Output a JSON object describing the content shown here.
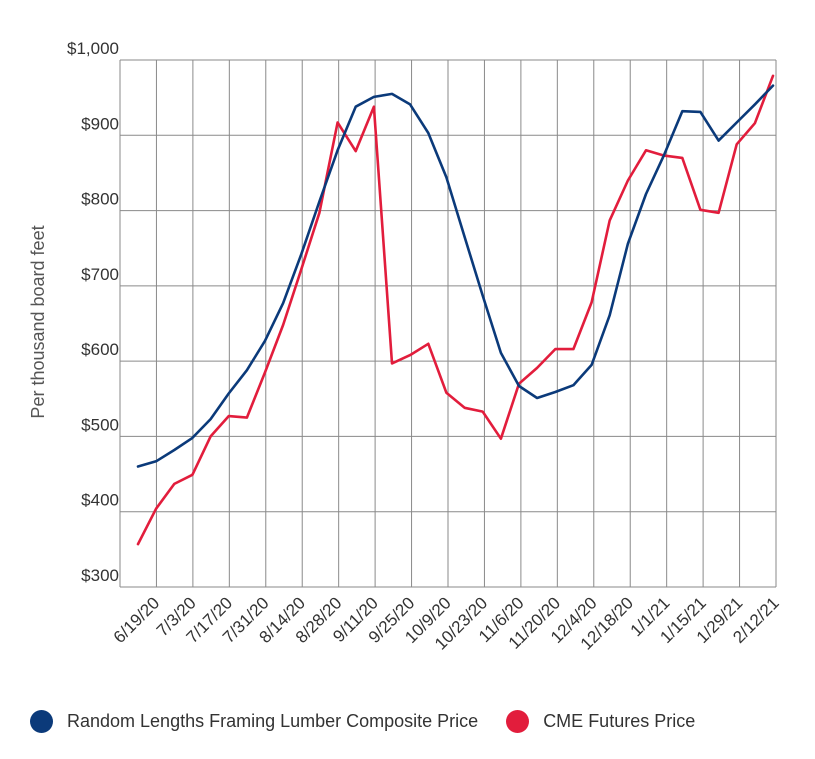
{
  "chart_data": {
    "type": "line",
    "ylabel": "Per thousand board feet",
    "ylim": [
      300,
      1000
    ],
    "yticks": [
      300,
      400,
      500,
      600,
      700,
      800,
      900,
      1000
    ],
    "ytick_labels": [
      "$300",
      "$400",
      "$500",
      "$600",
      "$700",
      "$800",
      "$900",
      "$1,000"
    ],
    "x_labels": [
      "6/19/20",
      "7/3/20",
      "7/17/20",
      "7/31/20",
      "8/14/20",
      "8/28/20",
      "9/11/20",
      "9/25/20",
      "10/9/20",
      "10/23/20",
      "11/6/20",
      "11/20/20",
      "12/4/20",
      "12/18/20",
      "1/1/21",
      "1/15/21",
      "1/29/21",
      "2/12/21"
    ],
    "grid": true,
    "legend_position": "bottom",
    "series": [
      {
        "name": "Random Lengths Framing Lumber Composite Price",
        "color": "#0b3a7a",
        "values": [
          460,
          467,
          482,
          498,
          523,
          557,
          588,
          627,
          677,
          742,
          812,
          880,
          938,
          951,
          955,
          941,
          903,
          844,
          765,
          687,
          611,
          567,
          551,
          559,
          568,
          595,
          661,
          756,
          822,
          874,
          932,
          931,
          893,
          917,
          941,
          966
        ]
      },
      {
        "name": "CME Futures Price",
        "color": "#e21d3c",
        "values": [
          357,
          404,
          437,
          449,
          500,
          527,
          525,
          585,
          648,
          722,
          797,
          917,
          879,
          938,
          597,
          608,
          623,
          558,
          538,
          533,
          497,
          570,
          591,
          616,
          616,
          678,
          787,
          840,
          880,
          873,
          870,
          801,
          797,
          888,
          916,
          979
        ]
      }
    ]
  }
}
